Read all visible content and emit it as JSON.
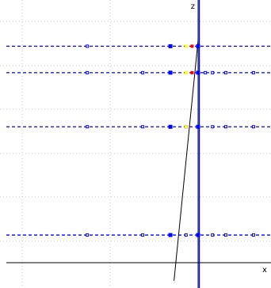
{
  "chart_data": {
    "type": "scatter",
    "x_axis_label": "x",
    "z_axis_label": "z",
    "xlim": [
      -21,
      1.8
    ],
    "zlim": [
      -2.3,
      19.9
    ],
    "grid": true,
    "colors": {
      "grid": "#c8c8c8",
      "axes": "#000000",
      "level_lines": "#0000ff",
      "markers": "#0000ff",
      "highlight_red": "#ff0000",
      "highlight_yellow": "#ffff00",
      "slanted_line": "#000000"
    },
    "vertical_reference_lines_x": [
      0,
      0.1
    ],
    "slanted_line": {
      "from": [
        -2,
        -1.5
      ],
      "to": [
        0,
        18.5
      ]
    },
    "levels": [
      {
        "z": 18.0,
        "blue_x": [
          -9.2,
          -2.3,
          0.0
        ],
        "red_x": [
          -0.5
        ],
        "yellow_x": [
          -1.0
        ]
      },
      {
        "z": 15.8,
        "blue_x": [
          -9.2,
          -4.6,
          -2.3,
          0.0,
          0.6,
          1.2,
          2.3,
          4.6
        ],
        "red_x": [
          -0.5
        ],
        "yellow_x": [
          -1.0
        ]
      },
      {
        "z": 11.3,
        "blue_x": [
          -9.2,
          -4.6,
          -2.3,
          -1.0,
          0.0,
          1.2,
          2.3,
          4.6
        ],
        "red_x": [],
        "yellow_x": [
          -1.0
        ]
      },
      {
        "z": 2.3,
        "blue_x": [
          -9.2,
          -4.6,
          -2.3,
          -1.0,
          0.0,
          1.2,
          2.3,
          4.6
        ],
        "red_x": [],
        "yellow_x": []
      }
    ]
  }
}
